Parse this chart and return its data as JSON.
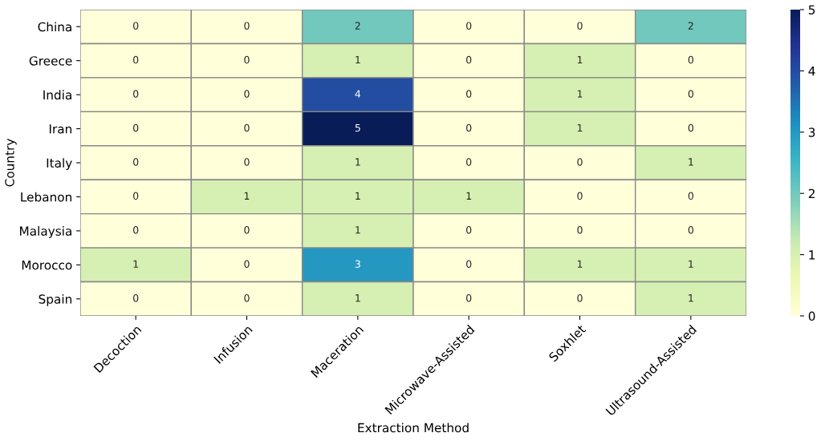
{
  "chart_data": {
    "type": "heatmap",
    "xlabel": "Extraction Method",
    "ylabel": "Country",
    "categories": [
      "Decoction",
      "Infusion",
      "Maceration",
      "Microwave-Assisted",
      "Soxhlet",
      "Ultrasound-Assisted"
    ],
    "y_categories": [
      "China",
      "Greece",
      "India",
      "Iran",
      "Italy",
      "Lebanon",
      "Malaysia",
      "Morocco",
      "Spain"
    ],
    "cells": [
      [
        0,
        0,
        2,
        0,
        0,
        2
      ],
      [
        0,
        0,
        1,
        0,
        1,
        0
      ],
      [
        0,
        0,
        4,
        0,
        1,
        0
      ],
      [
        0,
        0,
        5,
        0,
        1,
        0
      ],
      [
        0,
        0,
        1,
        0,
        0,
        1
      ],
      [
        0,
        1,
        1,
        1,
        0,
        0
      ],
      [
        0,
        0,
        1,
        0,
        0,
        0
      ],
      [
        1,
        0,
        3,
        0,
        1,
        1
      ],
      [
        0,
        0,
        1,
        0,
        0,
        1
      ]
    ],
    "clim": [
      0,
      5
    ],
    "cticks": [
      0,
      1,
      2,
      3,
      4,
      5
    ],
    "data_labels": true
  }
}
